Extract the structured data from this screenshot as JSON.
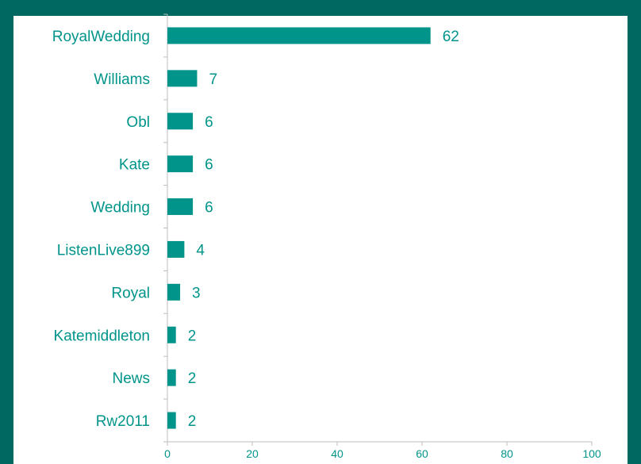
{
  "chart_data": {
    "type": "bar",
    "orientation": "horizontal",
    "categories": [
      "RoyalWedding",
      "Williams",
      "Obl",
      "Kate",
      "Wedding",
      "ListenLive899",
      "Royal",
      "Katemiddleton",
      "News",
      "Rw2011"
    ],
    "values": [
      62,
      7,
      6,
      6,
      6,
      4,
      3,
      2,
      2,
      2
    ],
    "xlim": [
      0,
      100
    ],
    "x_ticks": [
      0,
      20,
      40,
      60,
      80,
      100
    ],
    "grid": false,
    "data_labels": true,
    "bar_color": "#00948a",
    "text_color": "#00948a",
    "frame_color": "#00695f",
    "title": "",
    "xlabel": "",
    "ylabel": ""
  }
}
